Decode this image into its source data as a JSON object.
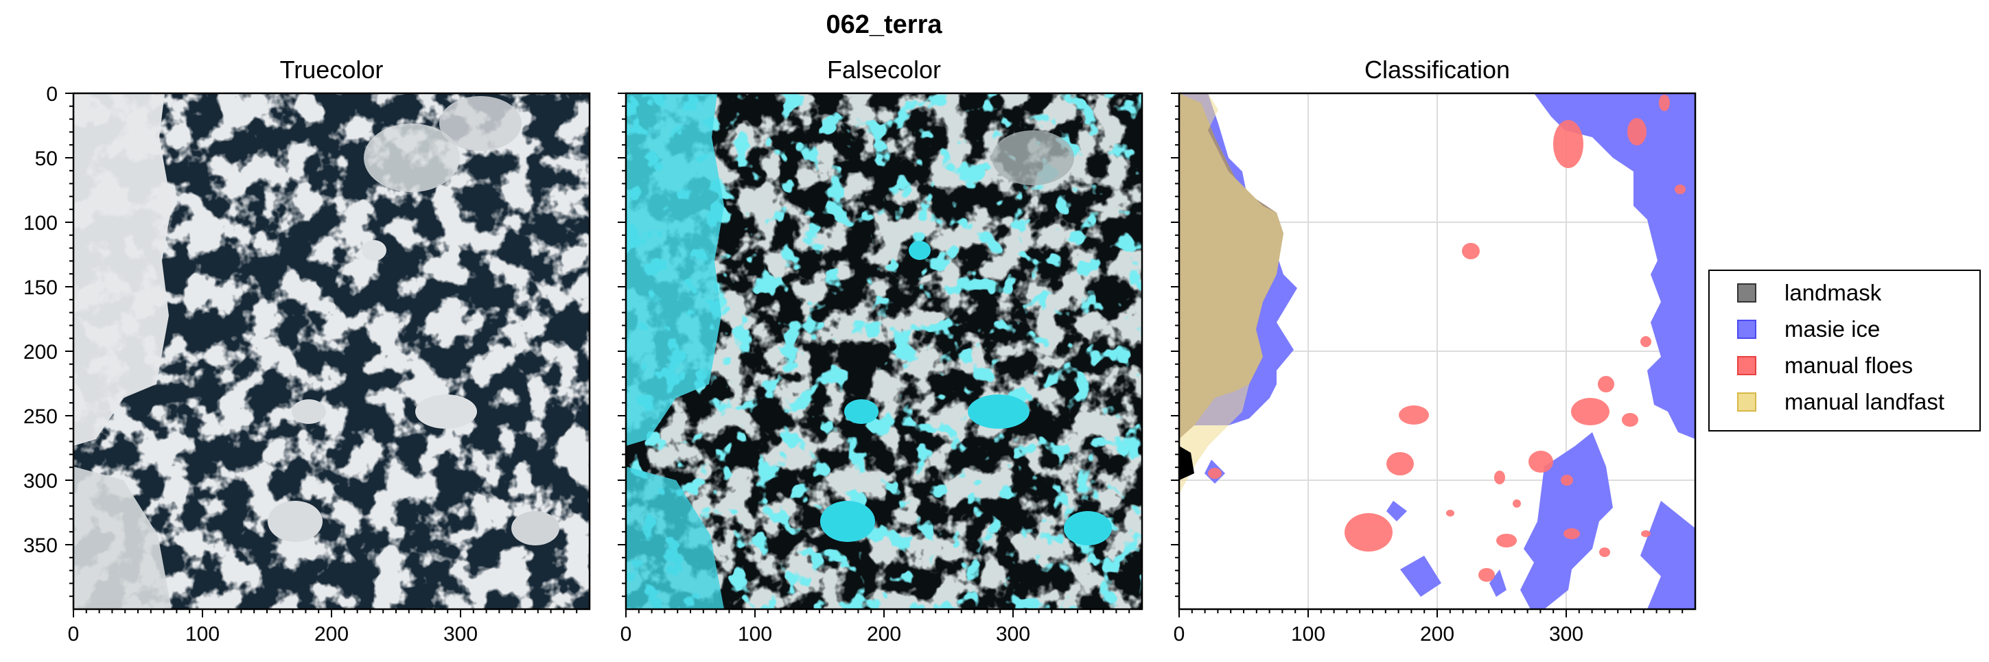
{
  "figure": {
    "title": "062_terra",
    "panels": [
      {
        "title": "Truecolor"
      },
      {
        "title": "Falsecolor"
      },
      {
        "title": "Classification"
      }
    ],
    "x_ticks": [
      "0",
      "100",
      "200",
      "300"
    ],
    "y_ticks": [
      "0",
      "50",
      "100",
      "150",
      "200",
      "250",
      "300",
      "350"
    ],
    "extent": [
      0,
      400
    ],
    "legend": {
      "placement": "right",
      "entries": [
        {
          "label": "landmask",
          "color": "#808080"
        },
        {
          "label": "masie ice",
          "color": "#7b7bff"
        },
        {
          "label": "manual floes",
          "color": "#ff7474"
        },
        {
          "label": "manual landfast",
          "color": "#f0dd8f"
        }
      ]
    },
    "colors": {
      "ocean": "#172836",
      "ice_true": "#cdd2d6",
      "land_true": "#e6e8ea",
      "ice_false_cyan": "#36d6e4",
      "ice_false_gray": "#a9b4b5",
      "land_classified": "#a48f7f"
    }
  }
}
